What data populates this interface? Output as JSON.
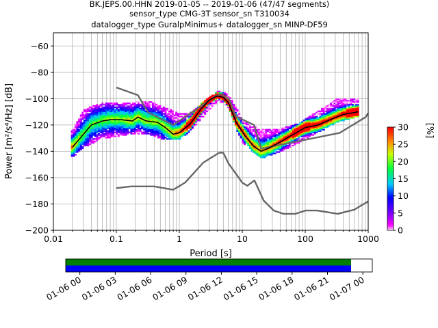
{
  "chart_data": {
    "type": "heatmap",
    "title_lines": [
      "BK.JEPS.00.HHN   2019-01-05 -- 2019-01-06  (47/47 segments)",
      "sensor_type CMG-3T sensor_sn T310034",
      "datalogger_type GuralpMinimus+ datalogger_sn MINP-DF59"
    ],
    "xlabel": "Period [s]",
    "ylabel": "Power [m²/s⁴/Hz] [dB]",
    "x_scale": "log",
    "xlim": [
      0.01,
      1000
    ],
    "ylim": [
      -200,
      -50
    ],
    "x_ticks": [
      {
        "value": 0.01,
        "label": "0.01"
      },
      {
        "value": 0.1,
        "label": "0.1"
      },
      {
        "value": 1,
        "label": "1"
      },
      {
        "value": 10,
        "label": "10"
      },
      {
        "value": 100,
        "label": "100"
      },
      {
        "value": 1000,
        "label": "1000"
      }
    ],
    "y_ticks": [
      {
        "value": -60,
        "label": "−60"
      },
      {
        "value": -80,
        "label": "−80"
      },
      {
        "value": -100,
        "label": "−100"
      },
      {
        "value": -120,
        "label": "−120"
      },
      {
        "value": -140,
        "label": "−140"
      },
      {
        "value": -160,
        "label": "−160"
      },
      {
        "value": -180,
        "label": "−180"
      },
      {
        "value": -200,
        "label": "−200"
      }
    ],
    "grid": true,
    "colorbar": {
      "label": "[%]",
      "range": [
        0,
        30
      ],
      "ticks": [
        {
          "value": 0,
          "label": "0"
        },
        {
          "value": 5,
          "label": "5"
        },
        {
          "value": 10,
          "label": "10"
        },
        {
          "value": 15,
          "label": "15"
        },
        {
          "value": 20,
          "label": "20"
        },
        {
          "value": 25,
          "label": "25"
        },
        {
          "value": 30,
          "label": "30"
        }
      ]
    },
    "series": [
      {
        "role": "NHNM",
        "color": "#666666",
        "points": [
          [
            0.1,
            -91.5
          ],
          [
            0.22,
            -97.4
          ],
          [
            0.32,
            -110.5
          ],
          [
            0.8,
            -120
          ],
          [
            3.8,
            -98
          ],
          [
            4.6,
            -96.5
          ],
          [
            6.3,
            -101
          ],
          [
            7.9,
            -113.5
          ],
          [
            15.4,
            -120
          ],
          [
            20,
            -138
          ],
          [
            354,
            -126
          ],
          [
            912,
            -114
          ],
          [
            1000,
            -111
          ]
        ]
      },
      {
        "role": "NLNM",
        "color": "#666666",
        "points": [
          [
            0.1,
            -168
          ],
          [
            0.17,
            -166.7
          ],
          [
            0.4,
            -166.7
          ],
          [
            0.8,
            -169.2
          ],
          [
            1.24,
            -163.7
          ],
          [
            2.4,
            -148.6
          ],
          [
            4.3,
            -141.1
          ],
          [
            5,
            -141.1
          ],
          [
            6,
            -149
          ],
          [
            10,
            -163.8
          ],
          [
            12,
            -166.2
          ],
          [
            15.6,
            -162.1
          ],
          [
            21.9,
            -177.5
          ],
          [
            31.6,
            -185
          ],
          [
            45,
            -187.5
          ],
          [
            70,
            -187.5
          ],
          [
            101,
            -185
          ],
          [
            154,
            -185
          ],
          [
            328,
            -187.5
          ],
          [
            600,
            -184.4
          ],
          [
            1000,
            -178
          ]
        ]
      },
      {
        "role": "mode",
        "color": "#000000",
        "points": [
          [
            0.02,
            -137
          ],
          [
            0.03,
            -127
          ],
          [
            0.04,
            -120
          ],
          [
            0.06,
            -117
          ],
          [
            0.08,
            -116
          ],
          [
            0.12,
            -116
          ],
          [
            0.18,
            -117
          ],
          [
            0.22,
            -114
          ],
          [
            0.3,
            -117
          ],
          [
            0.45,
            -118
          ],
          [
            0.6,
            -122
          ],
          [
            0.8,
            -127
          ],
          [
            1.0,
            -126
          ],
          [
            1.5,
            -119
          ],
          [
            2.2,
            -108
          ],
          [
            3.0,
            -101
          ],
          [
            4.0,
            -98
          ],
          [
            5.0,
            -99
          ],
          [
            6.0,
            -103
          ],
          [
            8.0,
            -118
          ],
          [
            11,
            -128
          ],
          [
            15,
            -136
          ],
          [
            20,
            -140
          ],
          [
            28,
            -137
          ],
          [
            40,
            -133
          ],
          [
            60,
            -128
          ],
          [
            100,
            -122
          ],
          [
            160,
            -120
          ],
          [
            250,
            -116
          ],
          [
            400,
            -112
          ],
          [
            700,
            -110
          ]
        ]
      }
    ],
    "density_band": {
      "period_range": [
        0.019,
        710
      ],
      "upper": [
        [
          0.02,
          -125
        ],
        [
          0.03,
          -110
        ],
        [
          0.06,
          -104
        ],
        [
          0.2,
          -104
        ],
        [
          0.35,
          -103
        ],
        [
          0.6,
          -108
        ],
        [
          1.0,
          -113
        ],
        [
          1.5,
          -112
        ],
        [
          2.5,
          -103
        ],
        [
          4.2,
          -95
        ],
        [
          6.0,
          -98
        ],
        [
          8.0,
          -108
        ],
        [
          10,
          -118
        ],
        [
          20,
          -125
        ],
        [
          40,
          -124
        ],
        [
          80,
          -120
        ],
        [
          120,
          -114
        ],
        [
          200,
          -108
        ],
        [
          300,
          -102
        ],
        [
          700,
          -101
        ]
      ],
      "lower": [
        [
          0.02,
          -144
        ],
        [
          0.03,
          -137
        ],
        [
          0.06,
          -130
        ],
        [
          0.2,
          -126
        ],
        [
          0.35,
          -127
        ],
        [
          0.6,
          -131
        ],
        [
          1.0,
          -131
        ],
        [
          1.5,
          -124
        ],
        [
          2.5,
          -112
        ],
        [
          4.2,
          -101
        ],
        [
          6.0,
          -106
        ],
        [
          8.0,
          -122
        ],
        [
          10,
          -133
        ],
        [
          20,
          -145
        ],
        [
          40,
          -140
        ],
        [
          80,
          -133
        ],
        [
          120,
          -128
        ],
        [
          200,
          -123
        ],
        [
          300,
          -118
        ],
        [
          700,
          -113
        ]
      ]
    },
    "time_axis": {
      "range_hours": [
        0,
        24
      ],
      "coverage": [
        [
          -1.2,
          23
        ]
      ],
      "tick_labels": [
        "01-06 00",
        "01-06 03",
        "01-06 06",
        "01-06 09",
        "01-06 12",
        "01-06 15",
        "01-06 18",
        "01-06 21",
        "01-07 00"
      ],
      "colors": {
        "upper": "#008000",
        "lower": "#0000ff"
      }
    }
  }
}
